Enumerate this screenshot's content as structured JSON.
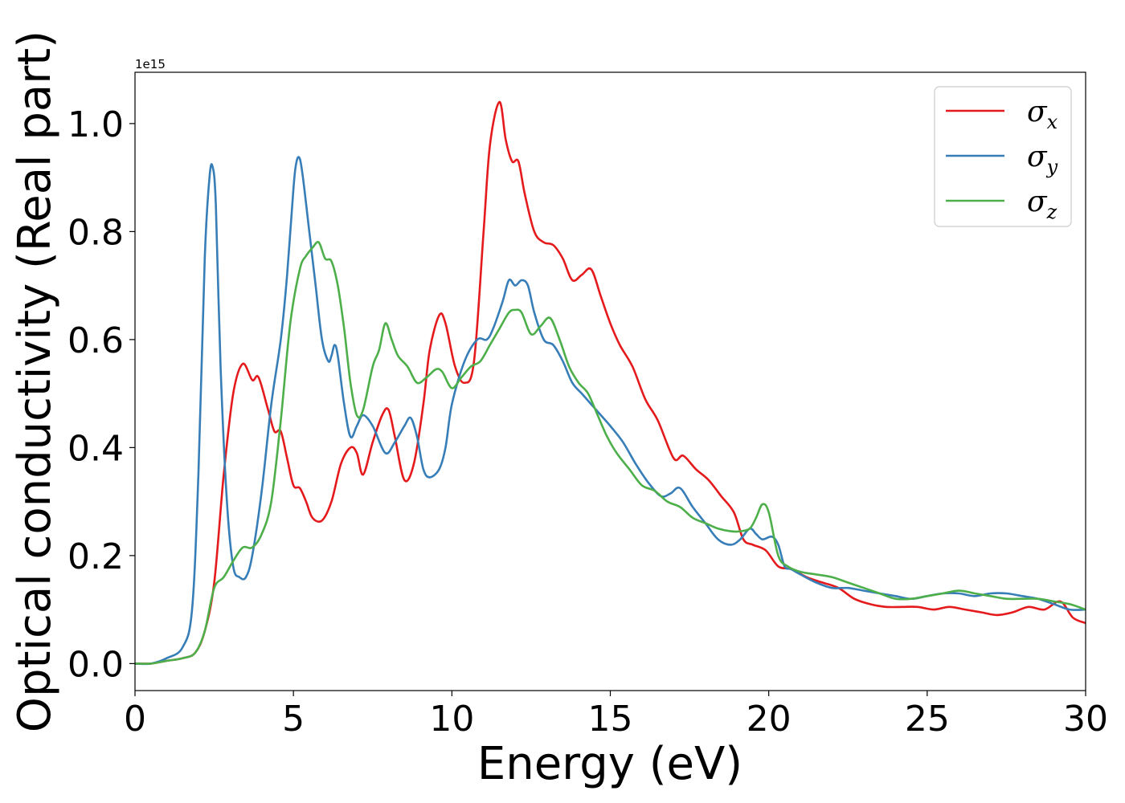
{
  "chart_data": {
    "type": "line",
    "xlabel": "Energy (eV)",
    "ylabel": "Optical conductivity (Real part)",
    "y_offset_label": "1e15",
    "xlim": [
      0,
      30
    ],
    "ylim": [
      -0.05,
      1.095
    ],
    "xticks": [
      0,
      5,
      10,
      15,
      20,
      25,
      30
    ],
    "xtick_labels": [
      "0",
      "5",
      "10",
      "15",
      "20",
      "25",
      "30"
    ],
    "yticks": [
      0.0,
      0.2,
      0.4,
      0.6,
      0.8,
      1.0
    ],
    "ytick_labels": [
      "0.0",
      "0.2",
      "0.4",
      "0.6",
      "0.8",
      "1.0"
    ],
    "grid": false,
    "legend_position": "top-right",
    "series": [
      {
        "name": "σx",
        "name_base": "σ",
        "name_sub": "x",
        "color": "#e41a1c",
        "x": [
          0,
          0.5,
          1,
          1.5,
          1.9,
          2.2,
          2.5,
          2.8,
          3.1,
          3.4,
          3.7,
          3.9,
          4.2,
          4.4,
          4.6,
          4.8,
          5,
          5.2,
          5.4,
          5.6,
          5.9,
          6.2,
          6.5,
          6.8,
          7,
          7.2,
          7.5,
          7.8,
          8,
          8.2,
          8.5,
          8.8,
          9.1,
          9.3,
          9.6,
          9.8,
          10.1,
          10.4,
          10.7,
          11,
          11.2,
          11.5,
          11.7,
          11.9,
          12.1,
          12.3,
          12.6,
          12.9,
          13.2,
          13.5,
          13.8,
          14.1,
          14.4,
          14.7,
          15,
          15.3,
          15.7,
          16.1,
          16.5,
          17,
          17.3,
          17.7,
          18.1,
          18.5,
          18.9,
          19.2,
          19.5,
          19.9,
          20.3,
          20.7,
          21.2,
          21.7,
          22.2,
          22.7,
          23.2,
          23.7,
          24.2,
          24.7,
          25.2,
          25.7,
          26.2,
          26.7,
          27.2,
          27.7,
          28.2,
          28.7,
          29.2,
          29.6,
          30
        ],
        "y": [
          0.0,
          0.0,
          0.005,
          0.01,
          0.02,
          0.06,
          0.15,
          0.35,
          0.5,
          0.555,
          0.525,
          0.53,
          0.47,
          0.43,
          0.43,
          0.38,
          0.33,
          0.325,
          0.3,
          0.27,
          0.265,
          0.3,
          0.37,
          0.4,
          0.39,
          0.35,
          0.41,
          0.46,
          0.47,
          0.42,
          0.34,
          0.37,
          0.48,
          0.58,
          0.645,
          0.63,
          0.55,
          0.52,
          0.56,
          0.8,
          0.96,
          1.04,
          0.97,
          0.93,
          0.93,
          0.87,
          0.8,
          0.78,
          0.775,
          0.75,
          0.71,
          0.72,
          0.73,
          0.68,
          0.63,
          0.59,
          0.55,
          0.49,
          0.45,
          0.38,
          0.385,
          0.36,
          0.34,
          0.31,
          0.28,
          0.23,
          0.22,
          0.21,
          0.18,
          0.175,
          0.16,
          0.15,
          0.14,
          0.12,
          0.11,
          0.105,
          0.105,
          0.105,
          0.1,
          0.105,
          0.1,
          0.095,
          0.09,
          0.095,
          0.105,
          0.1,
          0.115,
          0.085,
          0.075
        ]
      },
      {
        "name": "σy",
        "name_base": "σ",
        "name_sub": "y",
        "color": "#377eb8",
        "x": [
          0,
          0.5,
          1,
          1.5,
          1.8,
          2,
          2.2,
          2.35,
          2.45,
          2.55,
          2.7,
          2.9,
          3.1,
          3.3,
          3.5,
          3.7,
          4,
          4.3,
          4.6,
          4.8,
          5,
          5.1,
          5.2,
          5.3,
          5.5,
          5.7,
          5.9,
          6.1,
          6.2,
          6.3,
          6.4,
          6.6,
          6.8,
          7,
          7.2,
          7.5,
          7.9,
          8.2,
          8.5,
          8.7,
          8.9,
          9.1,
          9.3,
          9.6,
          9.8,
          10,
          10.4,
          10.8,
          11.1,
          11.3,
          11.6,
          11.8,
          12,
          12.2,
          12.4,
          12.6,
          12.9,
          13.2,
          13.5,
          13.8,
          14.1,
          14.4,
          14.7,
          15,
          15.4,
          15.8,
          16.2,
          16.6,
          16.9,
          17.2,
          17.6,
          18,
          18.4,
          18.8,
          19.1,
          19.4,
          19.6,
          19.8,
          20.1,
          20.3,
          20.5,
          20.7,
          21,
          21.5,
          22,
          22.5,
          23,
          23.5,
          24,
          24.5,
          25,
          25.5,
          26,
          26.5,
          27,
          27.5,
          28,
          28.5,
          29,
          29.5,
          30
        ],
        "y": [
          0.0,
          0.0,
          0.01,
          0.03,
          0.1,
          0.35,
          0.75,
          0.9,
          0.92,
          0.85,
          0.55,
          0.3,
          0.18,
          0.16,
          0.16,
          0.2,
          0.32,
          0.48,
          0.6,
          0.72,
          0.88,
          0.93,
          0.935,
          0.9,
          0.8,
          0.7,
          0.6,
          0.56,
          0.57,
          0.59,
          0.57,
          0.48,
          0.42,
          0.44,
          0.46,
          0.44,
          0.39,
          0.41,
          0.44,
          0.455,
          0.42,
          0.36,
          0.345,
          0.36,
          0.4,
          0.48,
          0.56,
          0.6,
          0.6,
          0.62,
          0.67,
          0.71,
          0.7,
          0.71,
          0.7,
          0.65,
          0.6,
          0.59,
          0.56,
          0.52,
          0.5,
          0.48,
          0.46,
          0.44,
          0.41,
          0.37,
          0.335,
          0.31,
          0.315,
          0.325,
          0.29,
          0.26,
          0.23,
          0.22,
          0.23,
          0.25,
          0.24,
          0.23,
          0.235,
          0.22,
          0.18,
          0.175,
          0.165,
          0.15,
          0.14,
          0.14,
          0.135,
          0.13,
          0.125,
          0.12,
          0.125,
          0.13,
          0.13,
          0.125,
          0.13,
          0.13,
          0.125,
          0.12,
          0.11,
          0.1,
          0.1
        ]
      },
      {
        "name": "σz",
        "name_base": "σ",
        "name_sub": "z",
        "color": "#4daf4a",
        "x": [
          0,
          0.5,
          1,
          1.5,
          1.9,
          2.2,
          2.5,
          2.8,
          3.1,
          3.4,
          3.7,
          4,
          4.3,
          4.6,
          4.9,
          5.2,
          5.4,
          5.6,
          5.8,
          6,
          6.2,
          6.4,
          6.6,
          6.8,
          7,
          7.2,
          7.5,
          7.7,
          7.9,
          8.1,
          8.3,
          8.6,
          8.9,
          9.2,
          9.5,
          9.7,
          10,
          10.3,
          10.6,
          10.9,
          11.2,
          11.5,
          11.8,
          12,
          12.2,
          12.5,
          12.8,
          13.1,
          13.4,
          13.7,
          14,
          14.3,
          14.6,
          14.9,
          15.2,
          15.6,
          16,
          16.4,
          16.8,
          17.2,
          17.6,
          18,
          18.4,
          18.8,
          19.1,
          19.4,
          19.6,
          19.8,
          20,
          20.3,
          20.6,
          21,
          21.5,
          22,
          22.5,
          23,
          23.5,
          24,
          24.5,
          25,
          25.5,
          26,
          26.5,
          27,
          27.5,
          28,
          28.5,
          29,
          29.5,
          30
        ],
        "y": [
          0.0,
          0.0,
          0.005,
          0.01,
          0.02,
          0.06,
          0.14,
          0.16,
          0.19,
          0.215,
          0.215,
          0.24,
          0.3,
          0.45,
          0.63,
          0.73,
          0.755,
          0.77,
          0.78,
          0.75,
          0.745,
          0.7,
          0.62,
          0.52,
          0.46,
          0.47,
          0.55,
          0.58,
          0.63,
          0.6,
          0.57,
          0.55,
          0.52,
          0.53,
          0.545,
          0.54,
          0.51,
          0.53,
          0.55,
          0.56,
          0.59,
          0.62,
          0.65,
          0.655,
          0.65,
          0.61,
          0.625,
          0.64,
          0.6,
          0.55,
          0.52,
          0.5,
          0.46,
          0.42,
          0.39,
          0.36,
          0.33,
          0.32,
          0.3,
          0.29,
          0.27,
          0.26,
          0.25,
          0.245,
          0.245,
          0.25,
          0.27,
          0.295,
          0.28,
          0.2,
          0.18,
          0.17,
          0.165,
          0.16,
          0.15,
          0.14,
          0.13,
          0.12,
          0.12,
          0.125,
          0.13,
          0.135,
          0.13,
          0.125,
          0.12,
          0.12,
          0.12,
          0.115,
          0.11,
          0.1
        ]
      }
    ]
  }
}
